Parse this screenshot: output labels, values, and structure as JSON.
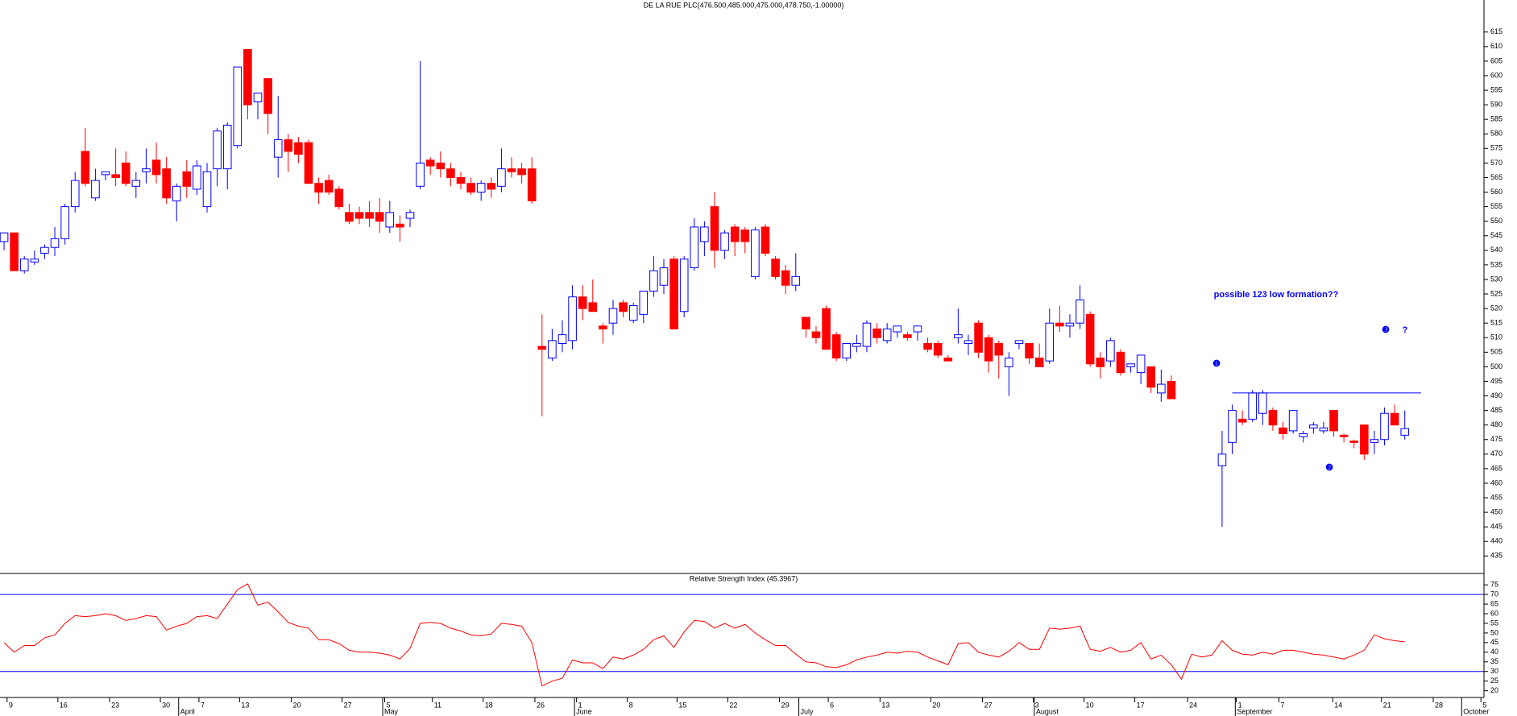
{
  "chart_data": [
    {
      "type": "candlestick",
      "title": "DE LA RUE PLC(476.500,485.000,475.000,478.750,-1.00000)",
      "up_color": "#0000ff",
      "down_color": "#ff0000",
      "xlim": [
        -0.4,
        145.8
      ],
      "xticks": [
        {
          "value": 0.3,
          "label": "9"
        },
        {
          "value": 5.3,
          "label": "16"
        },
        {
          "value": 10.4,
          "label": "23"
        },
        {
          "value": 15.4,
          "label": "30"
        },
        {
          "value": 19.2,
          "label": "7"
        },
        {
          "value": 23.2,
          "label": "13"
        },
        {
          "value": 28.3,
          "label": "20"
        },
        {
          "value": 33.3,
          "label": "27"
        },
        {
          "value": 37.5,
          "label": "5"
        },
        {
          "value": 42.2,
          "label": "11"
        },
        {
          "value": 47.2,
          "label": "18"
        },
        {
          "value": 52.3,
          "label": "26"
        },
        {
          "value": 56.4,
          "label": "1"
        },
        {
          "value": 61.4,
          "label": "8"
        },
        {
          "value": 66.3,
          "label": "15"
        },
        {
          "value": 71.3,
          "label": "22"
        },
        {
          "value": 76.4,
          "label": "29"
        },
        {
          "value": 81.2,
          "label": "6"
        },
        {
          "value": 86.3,
          "label": "13"
        },
        {
          "value": 91.3,
          "label": "20"
        },
        {
          "value": 96.4,
          "label": "27"
        },
        {
          "value": 101.4,
          "label": "3"
        },
        {
          "value": 106.4,
          "label": "10"
        },
        {
          "value": 111.4,
          "label": "17"
        },
        {
          "value": 116.6,
          "label": "24"
        },
        {
          "value": 121.4,
          "label": "1"
        },
        {
          "value": 125.6,
          "label": "7"
        },
        {
          "value": 130.9,
          "label": "14"
        },
        {
          "value": 135.7,
          "label": "21"
        },
        {
          "value": 140.8,
          "label": "28"
        },
        {
          "value": 145.5,
          "label": "5"
        }
      ],
      "month_ticks": [
        {
          "value": 17.2,
          "label": "April"
        },
        {
          "value": 37.3,
          "label": "May"
        },
        {
          "value": 56.2,
          "label": "June"
        },
        {
          "value": 78.3,
          "label": "July"
        },
        {
          "value": 101.5,
          "label": "August"
        },
        {
          "value": 121.3,
          "label": "September"
        },
        {
          "value": 143.6,
          "label": "October"
        }
      ],
      "ylim": [
        429,
        626
      ],
      "yticks": [
        435,
        440,
        445,
        450,
        455,
        460,
        465,
        470,
        475,
        480,
        485,
        490,
        495,
        500,
        505,
        510,
        515,
        520,
        525,
        530,
        535,
        540,
        545,
        550,
        555,
        560,
        565,
        570,
        575,
        580,
        585,
        590,
        595,
        600,
        605,
        610,
        615
      ],
      "ohlc": [
        [
          543,
          546,
          540,
          546
        ],
        [
          546,
          546,
          533,
          533
        ],
        [
          533,
          538,
          532,
          537
        ],
        [
          536,
          540,
          535,
          537
        ],
        [
          539,
          542,
          537,
          541
        ],
        [
          541,
          548,
          538,
          544
        ],
        [
          544,
          556,
          542,
          555
        ],
        [
          555,
          567,
          553,
          564
        ],
        [
          574,
          582,
          562,
          563
        ],
        [
          558,
          568,
          557,
          564
        ],
        [
          566,
          567,
          564,
          567
        ],
        [
          566,
          575,
          562,
          565
        ],
        [
          570,
          574,
          562,
          563
        ],
        [
          562,
          567,
          558,
          564
        ],
        [
          567,
          575,
          563,
          568
        ],
        [
          571,
          577,
          563,
          566
        ],
        [
          568,
          572,
          556,
          558
        ],
        [
          557,
          563,
          550,
          562
        ],
        [
          567,
          571,
          558,
          562
        ],
        [
          561,
          571,
          559,
          569
        ],
        [
          555,
          570,
          553,
          567
        ],
        [
          568,
          582,
          562,
          581
        ],
        [
          568,
          584,
          561,
          583
        ],
        [
          576,
          603,
          575,
          603
        ],
        [
          609,
          609,
          585,
          590
        ],
        [
          591,
          594,
          585,
          594
        ],
        [
          599,
          599,
          580,
          587
        ],
        [
          572,
          593,
          565,
          578
        ],
        [
          578,
          580,
          567,
          574
        ],
        [
          577,
          579,
          570,
          573
        ],
        [
          577,
          578,
          563,
          563
        ],
        [
          563,
          565,
          556,
          560
        ],
        [
          564,
          566,
          559,
          560
        ],
        [
          561,
          562,
          554,
          555
        ],
        [
          553,
          556,
          549,
          550
        ],
        [
          553,
          555,
          549,
          551
        ],
        [
          553,
          557,
          548,
          551
        ],
        [
          553,
          558,
          546,
          550
        ],
        [
          548,
          557,
          546,
          553
        ],
        [
          549,
          552,
          543,
          548
        ],
        [
          551,
          554,
          548,
          553
        ],
        [
          562,
          605,
          561,
          570
        ],
        [
          571,
          572,
          566,
          569
        ],
        [
          570,
          574,
          565,
          568
        ],
        [
          568,
          570,
          562,
          565
        ],
        [
          565,
          567,
          561,
          563
        ],
        [
          563,
          565,
          559,
          560
        ],
        [
          560,
          564,
          557,
          563
        ],
        [
          563,
          565,
          558,
          561
        ],
        [
          562,
          575,
          560,
          568
        ],
        [
          568,
          572,
          565,
          567
        ],
        [
          568,
          570,
          563,
          566
        ],
        [
          568,
          572,
          556,
          557
        ],
        [
          507,
          518,
          483,
          506
        ],
        [
          503,
          513,
          502,
          509
        ],
        [
          508,
          516,
          505,
          511
        ],
        [
          509,
          528,
          506,
          524
        ],
        [
          524,
          528,
          516,
          520
        ],
        [
          522,
          530,
          519,
          519
        ],
        [
          514,
          515,
          508,
          513
        ],
        [
          515,
          523,
          511,
          520
        ],
        [
          522,
          523,
          517,
          519
        ],
        [
          516,
          522,
          515,
          521
        ],
        [
          518,
          526,
          515,
          526
        ],
        [
          526,
          538,
          524,
          533
        ],
        [
          528,
          537,
          525,
          534
        ],
        [
          537,
          538,
          513,
          513
        ],
        [
          519,
          538,
          517,
          537
        ],
        [
          534,
          551,
          533,
          548
        ],
        [
          543,
          550,
          538,
          548
        ],
        [
          555,
          560,
          534,
          540
        ],
        [
          540,
          547,
          537,
          546
        ],
        [
          548,
          549,
          538,
          543
        ],
        [
          547,
          548,
          539,
          543
        ],
        [
          531,
          548,
          530,
          547
        ],
        [
          548,
          549,
          538,
          539
        ],
        [
          537,
          538,
          530,
          531
        ],
        [
          533,
          535,
          525,
          528
        ],
        [
          528,
          539,
          526,
          531
        ],
        [
          517,
          517,
          510,
          513
        ],
        [
          512,
          514,
          508,
          510
        ],
        [
          520,
          521,
          506,
          506
        ],
        [
          511,
          512,
          502,
          503
        ],
        [
          503,
          508,
          502,
          508
        ],
        [
          507,
          511,
          505,
          508
        ],
        [
          507,
          516,
          505,
          515
        ],
        [
          513,
          515,
          508,
          510
        ],
        [
          509,
          515,
          508,
          513
        ],
        [
          512,
          514,
          510,
          514
        ],
        [
          511,
          512,
          509,
          510
        ],
        [
          512,
          514,
          509,
          514
        ],
        [
          508,
          510,
          505,
          506
        ],
        [
          508,
          509,
          503,
          504
        ],
        [
          503,
          504,
          502,
          502
        ],
        [
          510,
          520,
          508,
          511
        ],
        [
          508,
          511,
          504,
          509
        ],
        [
          515,
          516,
          503,
          505
        ],
        [
          510,
          511,
          498,
          502
        ],
        [
          508,
          509,
          496,
          504
        ],
        [
          500,
          505,
          490,
          503
        ],
        [
          508,
          509,
          506,
          509
        ],
        [
          508,
          508,
          501,
          503
        ],
        [
          503,
          508,
          500,
          500
        ],
        [
          502,
          520,
          501,
          515
        ],
        [
          515,
          521,
          512,
          514
        ],
        [
          514,
          518,
          510,
          515
        ],
        [
          515,
          528,
          513,
          523
        ],
        [
          518,
          519,
          500,
          501
        ],
        [
          503,
          505,
          496,
          500
        ],
        [
          502,
          510,
          500,
          509
        ],
        [
          505,
          506,
          497,
          498
        ],
        [
          500,
          501,
          498,
          501
        ],
        [
          498,
          504,
          494,
          504
        ],
        [
          500,
          500,
          491,
          493
        ],
        [
          491,
          499,
          488,
          494
        ],
        [
          495,
          497,
          489,
          489
        ],
        null,
        null,
        null,
        null,
        [
          466,
          478,
          445,
          470
        ],
        [
          474,
          487,
          470,
          485
        ],
        [
          482,
          485,
          480,
          481
        ],
        [
          482,
          492,
          481,
          491
        ],
        [
          484,
          492,
          480,
          491
        ],
        [
          485,
          486,
          478,
          480
        ],
        [
          479,
          481,
          475,
          477
        ],
        [
          478,
          485,
          477,
          485
        ],
        [
          476,
          478,
          474,
          477
        ],
        [
          479,
          481,
          477,
          480
        ],
        [
          478,
          481,
          477,
          479
        ],
        [
          485,
          485,
          476,
          478
        ],
        [
          476.5,
          477,
          474,
          476
        ],
        [
          474.5,
          475,
          472,
          474
        ],
        [
          480,
          480,
          468,
          470
        ],
        [
          474,
          478,
          470,
          475
        ],
        [
          475,
          486,
          473,
          484
        ],
        [
          484,
          487,
          480,
          480
        ],
        [
          476.5,
          485,
          475,
          478.75
        ]
      ],
      "level_line": 491,
      "annotations": [
        "possible 123 low formation??",
        "❶",
        "❷",
        "❸",
        "?"
      ]
    },
    {
      "type": "line",
      "title": "Relative Strength Index (45.3967)",
      "color": "#ff0000",
      "level_color": "#0000ff",
      "ylim": [
        16.5,
        80.5
      ],
      "yticks": [
        20,
        25,
        30,
        35,
        40,
        45,
        50,
        55,
        60,
        65,
        70,
        75
      ],
      "levels": [
        30,
        70
      ],
      "values": [
        45,
        40,
        43.5,
        43.5,
        47.5,
        49,
        55,
        59,
        58.5,
        59,
        60,
        59,
        56.5,
        57.5,
        59,
        58.5,
        51.5,
        53.5,
        55,
        58.5,
        59,
        57.5,
        65,
        72.5,
        75.5,
        64.5,
        66,
        61,
        55.5,
        53.5,
        52.5,
        46.5,
        46.5,
        44.5,
        41,
        40,
        40,
        39.5,
        38.5,
        36.5,
        42,
        55,
        55.5,
        55,
        52.5,
        51,
        49,
        48.5,
        49.5,
        55,
        54.5,
        53.5,
        45,
        22.5,
        25,
        26.5,
        36,
        34.5,
        34.5,
        31.5,
        37.5,
        36.5,
        38.5,
        41.5,
        46.5,
        48.5,
        42.5,
        50.5,
        56.5,
        56,
        52.5,
        55,
        52.5,
        54.5,
        50,
        46.5,
        43.5,
        43.5,
        39,
        35,
        34.5,
        32.5,
        32,
        33.5,
        36,
        37.5,
        38.5,
        40,
        39.5,
        40.5,
        40,
        37.5,
        35.5,
        33.5,
        44.5,
        45,
        40,
        38.5,
        37.5,
        40.5,
        45,
        41.5,
        41.5,
        52.5,
        52,
        52.5,
        53.5,
        41.5,
        40.5,
        42.5,
        40,
        41,
        45,
        36.5,
        38.5,
        33.5,
        26,
        39,
        37.5,
        38.5,
        46,
        41,
        39,
        38.5,
        40,
        39,
        41,
        41,
        40,
        39,
        38.5,
        37.5,
        36.5,
        38.5,
        41,
        49,
        47,
        46,
        45.4
      ]
    }
  ]
}
